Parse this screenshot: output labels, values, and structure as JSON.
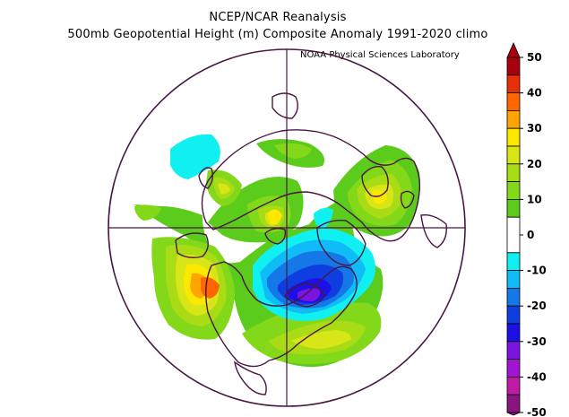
{
  "header": {
    "title": "NCEP/NCAR Reanalysis",
    "subtitle": "500mb Geopotential Height (m) Composite Anomaly 1991-2020 climo",
    "credit": "NOAA Physical Sciences Laboratory"
  },
  "colorbar": {
    "levels": [
      {
        "lo": 45,
        "hi": 50,
        "color": "#a8000c"
      },
      {
        "lo": 40,
        "hi": 45,
        "color": "#e83008"
      },
      {
        "lo": 35,
        "hi": 40,
        "color": "#ff6600"
      },
      {
        "lo": 30,
        "hi": 35,
        "color": "#ffa400"
      },
      {
        "lo": 25,
        "hi": 30,
        "color": "#ffe800"
      },
      {
        "lo": 20,
        "hi": 25,
        "color": "#d8e618"
      },
      {
        "lo": 15,
        "hi": 20,
        "color": "#aadc16"
      },
      {
        "lo": 10,
        "hi": 15,
        "color": "#84d81a"
      },
      {
        "lo": 5,
        "hi": 10,
        "color": "#5ccc1c"
      },
      {
        "lo": -5,
        "hi": 5,
        "color": "#ffffff"
      },
      {
        "lo": -10,
        "hi": -5,
        "color": "#10f0f0"
      },
      {
        "lo": -15,
        "hi": -10,
        "color": "#10bcf8"
      },
      {
        "lo": -20,
        "hi": -15,
        "color": "#1478e6"
      },
      {
        "lo": -25,
        "hi": -20,
        "color": "#0f3ee0"
      },
      {
        "lo": -30,
        "hi": -25,
        "color": "#1c10e6"
      },
      {
        "lo": -35,
        "hi": -30,
        "color": "#7a14e0"
      },
      {
        "lo": -40,
        "hi": -35,
        "color": "#a214d2"
      },
      {
        "lo": -45,
        "hi": -40,
        "color": "#c01aa6"
      },
      {
        "lo": -50,
        "hi": -45,
        "color": "#8a1480"
      }
    ],
    "labels": [
      "50",
      "40",
      "30",
      "20",
      "10",
      "0",
      "-10",
      "-20",
      "-30",
      "-40",
      "-50"
    ],
    "label_values": [
      50,
      40,
      30,
      20,
      10,
      0,
      -10,
      -20,
      -30,
      -40,
      -50
    ]
  },
  "map": {
    "projection": "north polar stereographic",
    "border_color": "#4a1642"
  }
}
